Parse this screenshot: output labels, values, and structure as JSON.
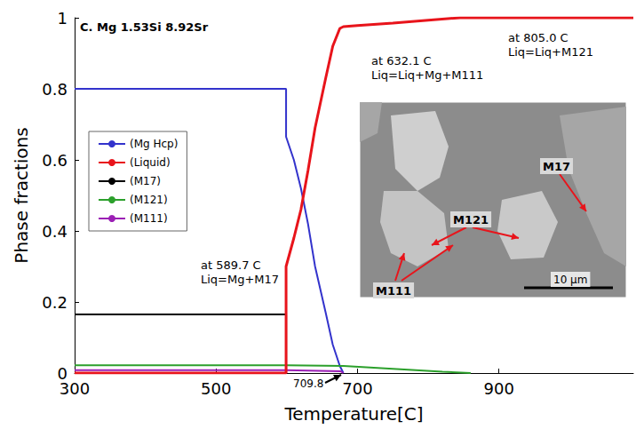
{
  "chart_data": {
    "type": "line",
    "title": "C. Mg 1.53Si 8.92Sr",
    "x_label": "Temperature[C]",
    "y_label": "Phase fractions",
    "xlim": [
      300,
      1090
    ],
    "xticks": [
      300,
      500,
      700,
      900
    ],
    "ylim": [
      0,
      1
    ],
    "yticks": [
      0,
      0.2,
      0.4,
      0.6,
      0.8,
      1
    ],
    "grid": false,
    "legend": "left",
    "series": [
      {
        "name": "(Mg Hcp)",
        "color": "#3333cc",
        "x": [
          300,
          599,
          599,
          610,
          620,
          630,
          640,
          655,
          665,
          675,
          680
        ],
        "values": [
          0.8,
          0.8,
          0.665,
          0.6,
          0.52,
          0.42,
          0.3,
          0.17,
          0.08,
          0.02,
          0
        ]
      },
      {
        "name": "(Liquid)",
        "color": "#e8141b",
        "x": [
          300,
          599,
          599,
          610,
          620,
          630,
          640,
          655,
          665,
          675,
          680,
          700,
          750,
          800,
          845,
          1090
        ],
        "values": [
          0,
          0,
          0.3,
          0.38,
          0.46,
          0.57,
          0.69,
          0.83,
          0.92,
          0.97,
          0.975,
          0.978,
          0.985,
          0.993,
          1,
          1
        ]
      },
      {
        "name": "(M17)",
        "color": "#000000",
        "x": [
          300,
          599,
          599
        ],
        "values": [
          0.165,
          0.165,
          0
        ]
      },
      {
        "name": "(M121)",
        "color": "#2ca02c",
        "x": [
          300,
          600,
          680,
          750,
          820,
          860
        ],
        "values": [
          0.022,
          0.022,
          0.02,
          0.012,
          0.004,
          0
        ]
      },
      {
        "name": "(M111)",
        "color": "#9b1fb5",
        "x": [
          300,
          599,
          676,
          680
        ],
        "values": [
          0.008,
          0.008,
          0.005,
          0
        ]
      }
    ],
    "annotations": [
      "at 805.0 C\nLiq=Liq+M121",
      "at 632.1 C\nLiq=Liq+Mg+M111",
      "at 589.7 C\nLiq=Mg+M17",
      "709.8"
    ],
    "inset": {
      "labels": [
        "M121",
        "M111",
        "M17"
      ],
      "scale_bar": "10 μm"
    }
  }
}
